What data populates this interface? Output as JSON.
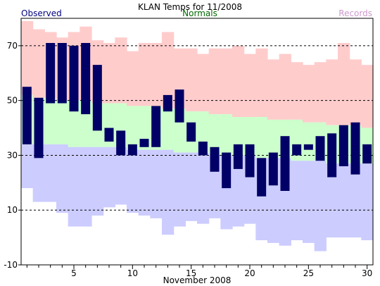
{
  "chart_data": {
    "type": "bar",
    "title": "KLAN Temps for 11/2008",
    "xlabel": "November 2008",
    "ylabel": "",
    "ylim": [
      -10,
      80
    ],
    "xlim": [
      0.5,
      30.5
    ],
    "legend": {
      "placement": "top",
      "observed": "Observed",
      "normals": "Normals",
      "records": "Records"
    },
    "colors": {
      "observed": "#000066",
      "normals": "#ccffcc",
      "records_high": "#ffcccc",
      "records_low": "#ccccff",
      "observed_label": "#000080",
      "normals_label": "#006600",
      "records_label": "#cc99cc"
    },
    "grid": {
      "y_dashed": true,
      "lines": [
        -10,
        10,
        30,
        50,
        70
      ]
    },
    "y_ticks": [
      -10,
      10,
      30,
      50,
      70
    ],
    "x_ticks": [
      5,
      10,
      15,
      20,
      25,
      30
    ],
    "days": [
      1,
      2,
      3,
      4,
      5,
      6,
      7,
      8,
      9,
      10,
      11,
      12,
      13,
      14,
      15,
      16,
      17,
      18,
      19,
      20,
      21,
      22,
      23,
      24,
      25,
      26,
      27,
      28,
      29,
      30
    ],
    "record_high": [
      79,
      76,
      75,
      73,
      75,
      77,
      72,
      71,
      73,
      68,
      71,
      71,
      75,
      69,
      69,
      67,
      69,
      69,
      70,
      67,
      69,
      65,
      67,
      64,
      63,
      64,
      65,
      71,
      65,
      63
    ],
    "record_low": [
      18,
      13,
      13,
      9,
      4,
      4,
      8,
      11,
      12,
      9,
      8,
      7,
      1,
      4,
      6,
      5,
      7,
      3,
      4,
      5,
      -1,
      -2,
      -3,
      -1,
      -2,
      -5,
      0,
      0,
      0,
      -1
    ],
    "normal_high": [
      52,
      51,
      51,
      50,
      50,
      50,
      49,
      49,
      49,
      48,
      48,
      48,
      47,
      47,
      46,
      46,
      45,
      45,
      44,
      44,
      44,
      43,
      43,
      43,
      42,
      42,
      41,
      41,
      41,
      40
    ],
    "normal_low": [
      34,
      34,
      34,
      34,
      33,
      33,
      33,
      33,
      33,
      32,
      32,
      32,
      32,
      31,
      31,
      31,
      30,
      30,
      30,
      30,
      29,
      29,
      29,
      28,
      28,
      28,
      27,
      27,
      27,
      27
    ],
    "observed_high": [
      55,
      51,
      71,
      71,
      70,
      71,
      63,
      40,
      39,
      34,
      36,
      48,
      52,
      54,
      42,
      35,
      33,
      31,
      34,
      34,
      29,
      31,
      37,
      34,
      34,
      37,
      38,
      41,
      42,
      34
    ],
    "observed_low": [
      34,
      29,
      49,
      49,
      46,
      45,
      39,
      35,
      30,
      30,
      33,
      33,
      46,
      42,
      35,
      30,
      24,
      18,
      25,
      22,
      15,
      19,
      17,
      30,
      32,
      28,
      22,
      26,
      23,
      27
    ]
  }
}
